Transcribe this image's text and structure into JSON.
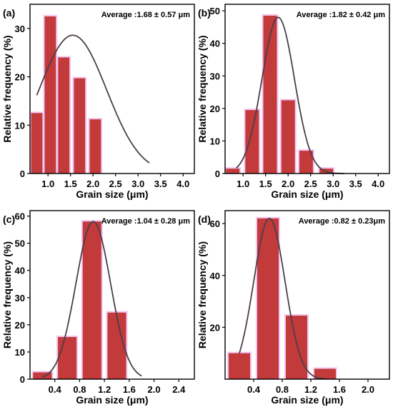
{
  "chart_data": [
    {
      "panel": "(a)",
      "type": "bar",
      "annotation": "Average :1.68 ± 0.57 μm",
      "xlabel": "Grain size (μm)",
      "ylabel": "Relative frequency (%)",
      "xlim": [
        0.6,
        4.25
      ],
      "ylim": [
        0,
        35
      ],
      "xticks": [
        "1.0",
        "1.5",
        "2.0",
        "2.5",
        "3.0",
        "3.5",
        "4.0"
      ],
      "yticks": [
        "0",
        "10",
        "20",
        "30"
      ],
      "bar_width": 0.25,
      "bins": [
        0.75,
        1.05,
        1.35,
        1.7,
        2.05,
        2.4
      ],
      "x": [
        0.75,
        1.05,
        1.35,
        1.7,
        2.05,
        2.4
      ],
      "values": [
        12.5,
        32.5,
        24.0,
        19.7,
        11.2,
        0
      ],
      "fit": {
        "type": "gaussian",
        "mean": 1.55,
        "sigma": 0.75,
        "peak": 28.6,
        "from": 0.75,
        "to": 3.25
      }
    },
    {
      "panel": "(b)",
      "type": "bar",
      "annotation": "Average :1.82 ± 0.42 μm",
      "xlabel": "Grain size (μm)",
      "ylabel": "Relative frequency (%)",
      "xlim": [
        0.6,
        4.25
      ],
      "ylim": [
        0,
        52
      ],
      "xticks": [
        "1.0",
        "1.5",
        "2.0",
        "2.5",
        "3.0",
        "3.5",
        "4.0"
      ],
      "yticks": [
        "0",
        "10",
        "20",
        "30",
        "40",
        "50"
      ],
      "bar_width": 0.3,
      "x": [
        0.77,
        1.2,
        1.6,
        2.0,
        2.4,
        2.85,
        3.25
      ],
      "values": [
        1.5,
        19.5,
        48.5,
        22.5,
        7.0,
        1.5,
        0
      ],
      "fit": {
        "type": "gaussian",
        "mean": 1.78,
        "sigma": 0.36,
        "peak": 48.0,
        "from": 0.85,
        "to": 3.25
      }
    },
    {
      "panel": "(c)",
      "type": "bar",
      "annotation": "Average :1.04 ± 0.28 μm",
      "xlabel": "Grain size (μm)",
      "ylabel": "Relative frequency (%)",
      "xlim": [
        0.0,
        2.65
      ],
      "ylim": [
        0,
        62
      ],
      "xticks": [
        "0.4",
        "0.8",
        "1.2",
        "1.6",
        "2.0",
        "2.4"
      ],
      "yticks": [
        "0",
        "10",
        "20",
        "30",
        "40",
        "50",
        "60"
      ],
      "bar_width": 0.3,
      "x": [
        0.2,
        0.6,
        1.0,
        1.4
      ],
      "values": [
        2.5,
        15.5,
        58.0,
        24.5
      ],
      "fit": {
        "type": "gaussian",
        "mean": 1.02,
        "sigma": 0.28,
        "peak": 58.0,
        "from": 0.2,
        "to": 1.8
      }
    },
    {
      "panel": "(d)",
      "type": "bar",
      "annotation": "Average :0.82 ± 0.23μm",
      "xlabel": "Grain size (μm)",
      "ylabel": "Relative frequency (%)",
      "xlim": [
        0.0,
        2.3
      ],
      "ylim": [
        0,
        65
      ],
      "xticks": [
        "0.4",
        "0.8",
        "1.2",
        "1.6",
        "2.0"
      ],
      "yticks": [
        "20",
        "40",
        "60"
      ],
      "bar_width": 0.3,
      "x": [
        0.2,
        0.6,
        1.0,
        1.4
      ],
      "values": [
        10.0,
        62.0,
        24.5,
        4.0
      ],
      "fit": {
        "type": "gaussian",
        "mean": 0.62,
        "sigma": 0.22,
        "peak": 62.0,
        "from": 0.2,
        "to": 1.4
      }
    }
  ]
}
